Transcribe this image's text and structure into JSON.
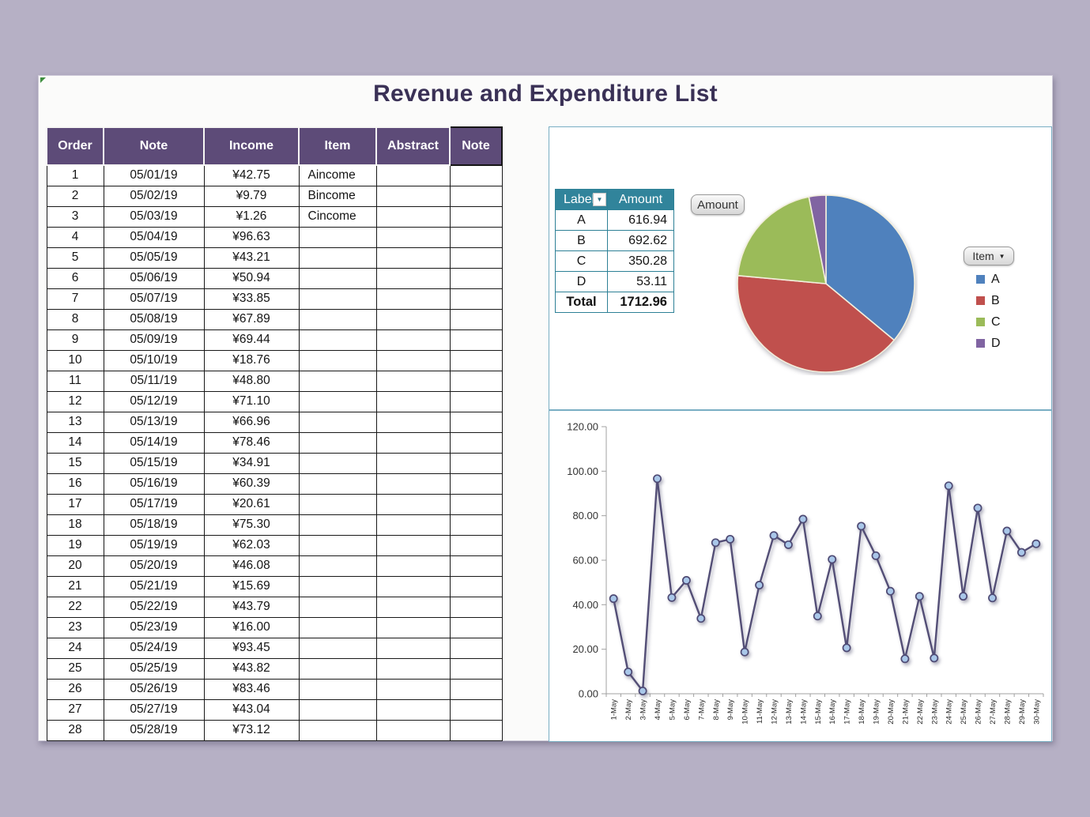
{
  "title": "Revenue and Expenditure List",
  "income_table": {
    "headers": [
      "Order",
      "Note",
      "Income",
      "Item",
      "Abstract",
      "Note"
    ],
    "rows": [
      [
        "1",
        "05/01/19",
        "¥42.75",
        "Aincome",
        "",
        ""
      ],
      [
        "2",
        "05/02/19",
        "¥9.79",
        "Bincome",
        "",
        ""
      ],
      [
        "3",
        "05/03/19",
        "¥1.26",
        "Cincome",
        "",
        ""
      ],
      [
        "4",
        "05/04/19",
        "¥96.63",
        "",
        "",
        ""
      ],
      [
        "5",
        "05/05/19",
        "¥43.21",
        "",
        "",
        ""
      ],
      [
        "6",
        "05/06/19",
        "¥50.94",
        "",
        "",
        ""
      ],
      [
        "7",
        "05/07/19",
        "¥33.85",
        "",
        "",
        ""
      ],
      [
        "8",
        "05/08/19",
        "¥67.89",
        "",
        "",
        ""
      ],
      [
        "9",
        "05/09/19",
        "¥69.44",
        "",
        "",
        ""
      ],
      [
        "10",
        "05/10/19",
        "¥18.76",
        "",
        "",
        ""
      ],
      [
        "11",
        "05/11/19",
        "¥48.80",
        "",
        "",
        ""
      ],
      [
        "12",
        "05/12/19",
        "¥71.10",
        "",
        "",
        ""
      ],
      [
        "13",
        "05/13/19",
        "¥66.96",
        "",
        "",
        ""
      ],
      [
        "14",
        "05/14/19",
        "¥78.46",
        "",
        "",
        ""
      ],
      [
        "15",
        "05/15/19",
        "¥34.91",
        "",
        "",
        ""
      ],
      [
        "16",
        "05/16/19",
        "¥60.39",
        "",
        "",
        ""
      ],
      [
        "17",
        "05/17/19",
        "¥20.61",
        "",
        "",
        ""
      ],
      [
        "18",
        "05/18/19",
        "¥75.30",
        "",
        "",
        ""
      ],
      [
        "19",
        "05/19/19",
        "¥62.03",
        "",
        "",
        ""
      ],
      [
        "20",
        "05/20/19",
        "¥46.08",
        "",
        "",
        ""
      ],
      [
        "21",
        "05/21/19",
        "¥15.69",
        "",
        "",
        ""
      ],
      [
        "22",
        "05/22/19",
        "¥43.79",
        "",
        "",
        ""
      ],
      [
        "23",
        "05/23/19",
        "¥16.00",
        "",
        "",
        ""
      ],
      [
        "24",
        "05/24/19",
        "¥93.45",
        "",
        "",
        ""
      ],
      [
        "25",
        "05/25/19",
        "¥43.82",
        "",
        "",
        ""
      ],
      [
        "26",
        "05/26/19",
        "¥83.46",
        "",
        "",
        ""
      ],
      [
        "27",
        "05/27/19",
        "¥43.04",
        "",
        "",
        ""
      ],
      [
        "28",
        "05/28/19",
        "¥73.12",
        "",
        "",
        ""
      ]
    ]
  },
  "pivot_table": {
    "label_header": "Label",
    "amount_header": "Amount",
    "rows": [
      [
        "A",
        "616.94"
      ],
      [
        "B",
        "692.62"
      ],
      [
        "C",
        "350.28"
      ],
      [
        "D",
        "53.11"
      ]
    ],
    "total_label": "Total",
    "total_amount": "1712.96"
  },
  "field_buttons": {
    "amount_label": "Amount",
    "item_label": "Item"
  },
  "chart_data": [
    {
      "type": "pie",
      "labels": [
        "A",
        "B",
        "C",
        "D"
      ],
      "values": [
        616.94,
        692.62,
        350.28,
        53.11
      ],
      "total": 1712.96,
      "colors": [
        "#4F81BD",
        "#C0504D",
        "#9BBB59",
        "#8064A2"
      ],
      "legend_position": "right",
      "start_angle_deg": 0,
      "direction": "clockwise"
    },
    {
      "type": "line",
      "x": [
        "1-May",
        "2-May",
        "3-May",
        "4-May",
        "5-May",
        "6-May",
        "7-May",
        "8-May",
        "9-May",
        "10-May",
        "11-May",
        "12-May",
        "13-May",
        "14-May",
        "15-May",
        "16-May",
        "17-May",
        "18-May",
        "19-May",
        "20-May",
        "21-May",
        "22-May",
        "23-May",
        "24-May",
        "25-May",
        "26-May",
        "27-May",
        "28-May",
        "29-May",
        "30-May"
      ],
      "values": [
        42.75,
        9.79,
        1.26,
        96.63,
        43.21,
        50.94,
        33.85,
        67.89,
        69.44,
        18.76,
        48.8,
        71.1,
        66.96,
        78.46,
        34.91,
        60.39,
        20.61,
        75.3,
        62.03,
        46.08,
        15.69,
        43.79,
        16.0,
        93.45,
        43.82,
        83.46,
        43.04,
        73.12,
        63.5,
        67.4
      ],
      "ylim": [
        0,
        120
      ],
      "ytick_labels": [
        "0.00",
        "20.00",
        "40.00",
        "60.00",
        "80.00",
        "100.00",
        "120.00"
      ],
      "grid": false,
      "legend": "none",
      "line_color": "#534E76",
      "marker_fill": "#A9C7E9",
      "marker_stroke": "#4E4A74"
    }
  ],
  "colors": {
    "header_purple": "#5D4B78",
    "title_color": "#3A3156",
    "pivot_teal": "#31849B",
    "page_background": "#B6B0C5"
  }
}
